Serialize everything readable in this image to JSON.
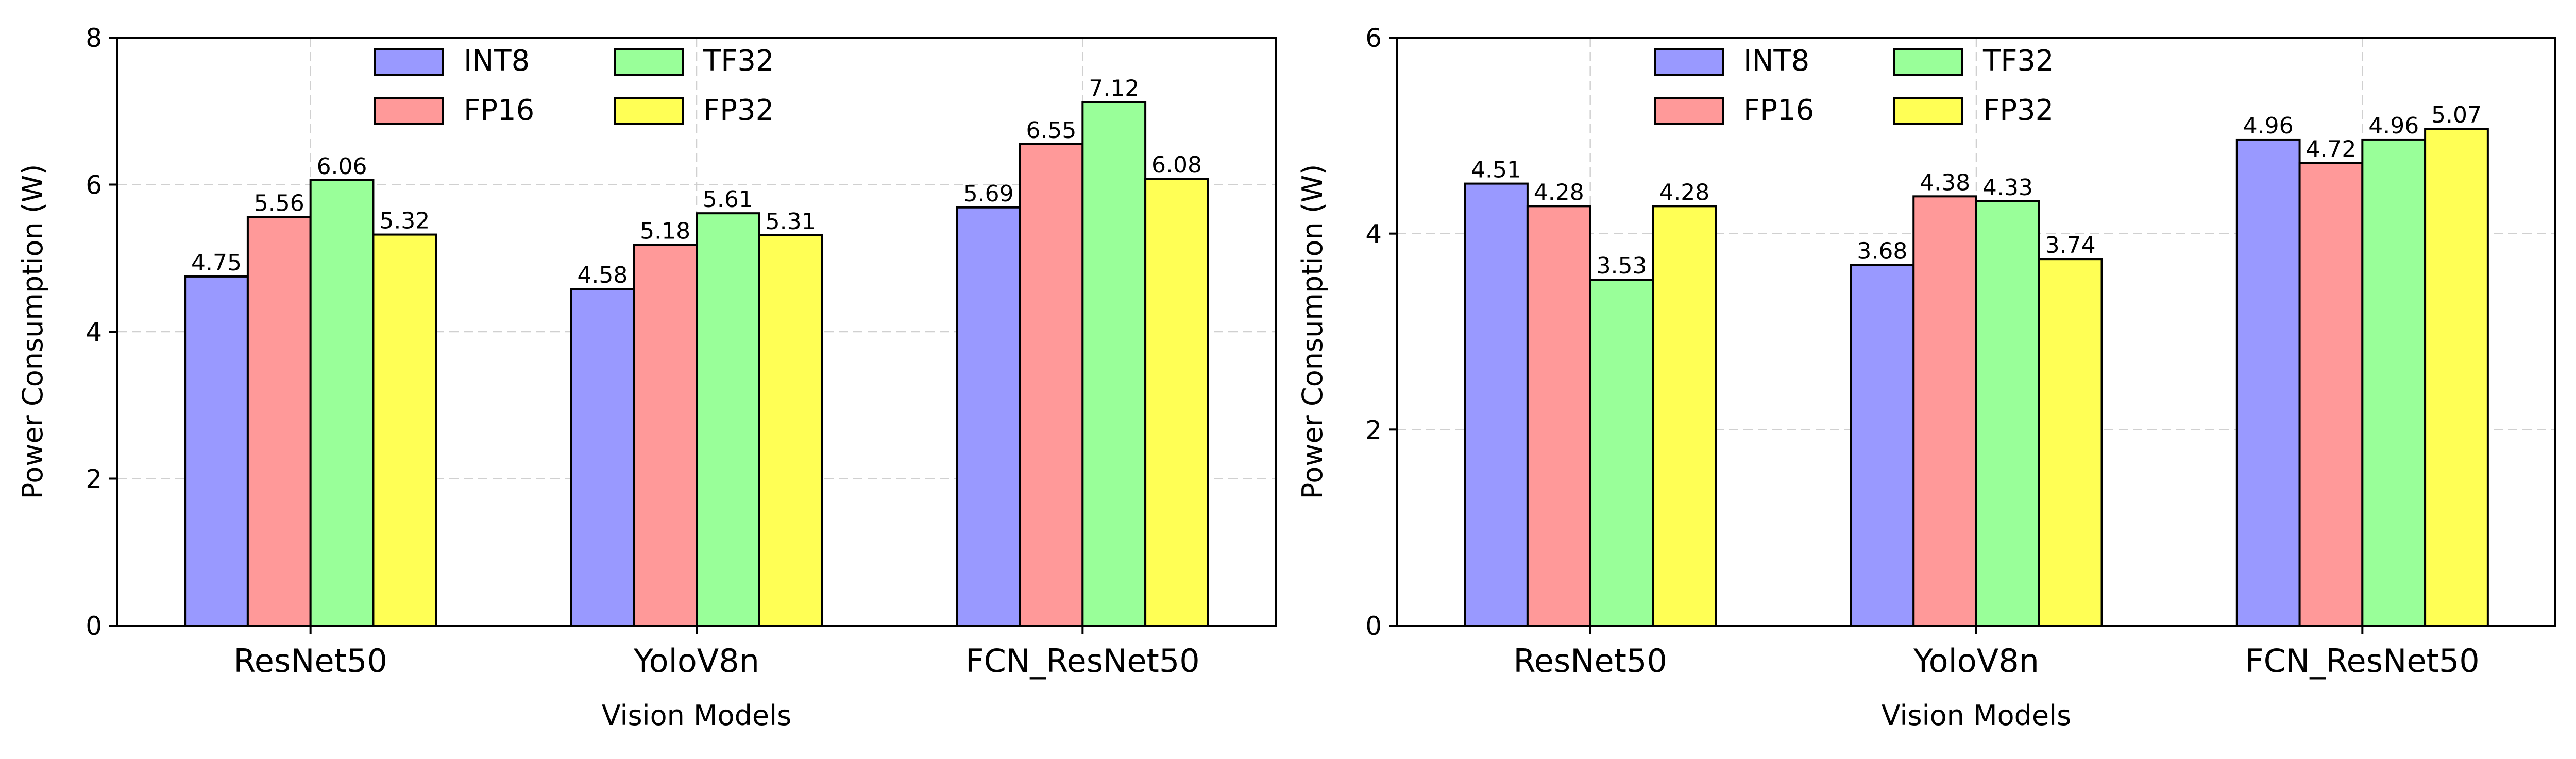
{
  "chart_data": [
    {
      "type": "bar",
      "title": "",
      "xlabel": "Vision Models",
      "ylabel": "Power Consumption (W)",
      "ylim": [
        0,
        8
      ],
      "yticks": [
        0,
        2,
        4,
        6,
        8
      ],
      "grid": true,
      "legend_position": "top-center",
      "categories": [
        "ResNet50",
        "YoloV8n",
        "FCN_ResNet50"
      ],
      "series": [
        {
          "name": "INT8",
          "color": "#9999ff",
          "values": [
            4.75,
            4.58,
            5.69
          ],
          "labels": [
            "4.75",
            "4.58",
            "5.69"
          ]
        },
        {
          "name": "FP16",
          "color": "#ff9999",
          "values": [
            5.56,
            5.18,
            6.55
          ],
          "labels": [
            "5.56",
            "5.18",
            "6.55"
          ]
        },
        {
          "name": "TF32",
          "color": "#99ff99",
          "values": [
            6.06,
            5.61,
            7.12
          ],
          "labels": [
            "6.06",
            "5.61",
            "7.12"
          ]
        },
        {
          "name": "FP32",
          "color": "#ffff55",
          "values": [
            5.32,
            5.31,
            6.08
          ],
          "labels": [
            "5.32",
            "5.31",
            "6.08"
          ]
        }
      ]
    },
    {
      "type": "bar",
      "title": "",
      "xlabel": "Vision Models",
      "ylabel": "Power Consumption (W)",
      "ylim": [
        0,
        6
      ],
      "yticks": [
        0,
        2,
        4,
        6
      ],
      "grid": true,
      "legend_position": "top-center",
      "categories": [
        "ResNet50",
        "YoloV8n",
        "FCN_ResNet50"
      ],
      "series": [
        {
          "name": "INT8",
          "color": "#9999ff",
          "values": [
            4.51,
            3.68,
            4.96
          ],
          "labels": [
            "4.51",
            "3.68",
            "4.96"
          ]
        },
        {
          "name": "FP16",
          "color": "#ff9999",
          "values": [
            4.28,
            4.38,
            4.72
          ],
          "labels": [
            "4.28",
            "4.38",
            "4.72"
          ]
        },
        {
          "name": "TF32",
          "color": "#99ff99",
          "values": [
            3.53,
            4.33,
            4.96
          ],
          "labels": [
            "3.53",
            "4.33",
            "4.96"
          ]
        },
        {
          "name": "FP32",
          "color": "#ffff55",
          "values": [
            4.28,
            3.74,
            5.07
          ],
          "labels": [
            "4.28",
            "3.74",
            "5.07"
          ]
        }
      ]
    }
  ]
}
